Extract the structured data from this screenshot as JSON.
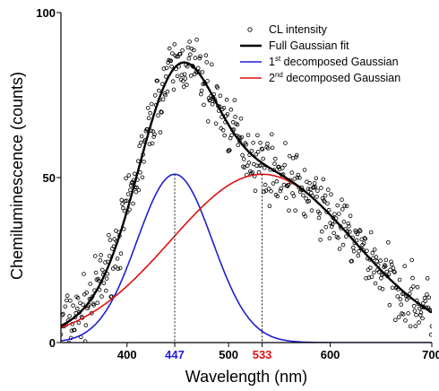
{
  "chart_data": {
    "type": "scatter",
    "xlabel": "Wavelength (nm)",
    "ylabel": "Chemiluminescence (counts)",
    "xlim": [
      335,
      700
    ],
    "ylim": [
      0,
      100
    ],
    "xticks": [
      {
        "value": 400,
        "label": "400",
        "color": "#000000"
      },
      {
        "value": 447,
        "label": "447",
        "color": "#1f1fd0"
      },
      {
        "value": 500,
        "label": "500",
        "color": "#000000"
      },
      {
        "value": 533,
        "label": "533",
        "color": "#e01010"
      },
      {
        "value": 600,
        "label": "600",
        "color": "#000000"
      },
      {
        "value": 700,
        "label": "700",
        "color": "#000000"
      }
    ],
    "yticks": [
      {
        "value": 0,
        "label": "0"
      },
      {
        "value": 50,
        "label": "50"
      },
      {
        "value": 100,
        "label": "100"
      }
    ],
    "legend_position": "top-right",
    "legend": [
      {
        "marker": "circle",
        "color": "#000000",
        "label": "CL intensity"
      },
      {
        "marker": "line",
        "color": "#000000",
        "label": "Full Gaussian fit"
      },
      {
        "marker": "line",
        "color": "#1f1fd0",
        "label_prefix": "1",
        "label_sup": "st",
        "label_suffix": " decomposed Gaussian"
      },
      {
        "marker": "line",
        "color": "#e01010",
        "label_prefix": "2",
        "label_sup": "nd",
        "label_suffix": " decomposed Gaussian"
      }
    ],
    "series": [
      {
        "name": "1st decomposed Gaussian",
        "color": "#1f1fd0",
        "center": 447,
        "amplitude": 51,
        "sigma": 37
      },
      {
        "name": "2nd decomposed Gaussian",
        "color": "#e01010",
        "center": 533,
        "amplitude": 51,
        "sigma": 90
      }
    ],
    "fit": {
      "name": "Full Gaussian fit",
      "color": "#000000"
    },
    "markers": [
      {
        "x": 447,
        "y_top": 51
      },
      {
        "x": 533,
        "y_top": 51
      }
    ],
    "scatter": {
      "name": "CL intensity",
      "x_start": 335,
      "x_end": 700,
      "count": 520,
      "noise": 4.5
    }
  }
}
